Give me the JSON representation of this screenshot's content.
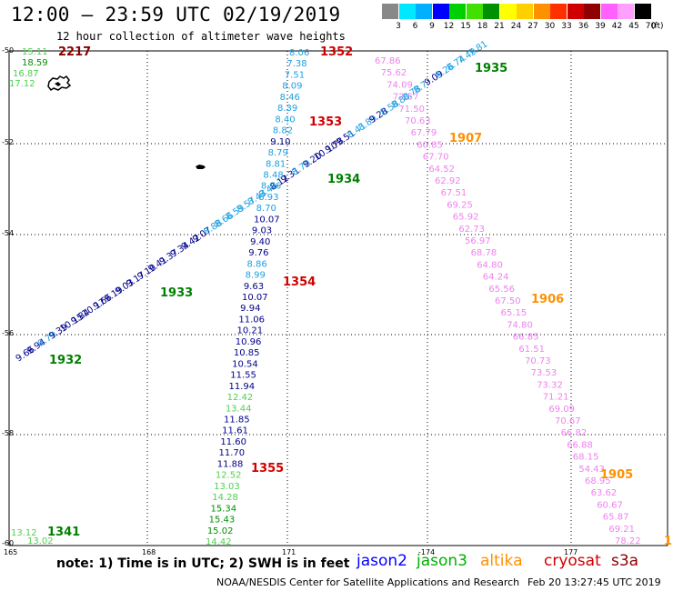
{
  "header": {
    "title": "12:00 – 23:59 UTC 02/19/2019",
    "subtitle": "12 hour collection of altimeter wave heights"
  },
  "legend": {
    "swatches": [
      "#888888",
      "#00e8ff",
      "#00b0ff",
      "#0000ff",
      "#00d000",
      "#40e000",
      "#009000",
      "#ffff00",
      "#ffd000",
      "#ff9000",
      "#ff3000",
      "#d00000",
      "#900000",
      "#ff60ff",
      "#ffa0ff",
      "#000000"
    ],
    "ticks": [
      "3",
      "6",
      "9",
      "12",
      "15",
      "18",
      "21",
      "24",
      "27",
      "30",
      "33",
      "36",
      "39",
      "42",
      "45",
      "70"
    ],
    "unit": "(ft)"
  },
  "axes": {
    "lat_labels": [
      "-50",
      "-52",
      "-54",
      "-56",
      "-58",
      "-60"
    ],
    "lon_labels": [
      "165",
      "168",
      "171",
      "-174",
      "177"
    ]
  },
  "land": [
    {
      "name": "campbell-island-icon"
    },
    {
      "name": "small-island-icon"
    }
  ],
  "passes": [
    {
      "id": "jason2-a",
      "color_main": "#00008b",
      "values": [
        "9.66",
        "9.94",
        "8.79",
        "9.39",
        "10.15",
        "9.84",
        "10.17",
        "9.66",
        "9.19",
        "9.03",
        "9.17",
        "9.10",
        "9.41",
        "9.37",
        "9.34",
        "9.42",
        "9.07",
        "8.88",
        "8.66",
        "8.59",
        "8.57",
        "8.43",
        "8.48",
        "8.12",
        "9.31",
        "8.70",
        "9.20",
        "10.10",
        "9.78",
        "9.51",
        "8.41",
        "8.89",
        "9.28",
        "8.58",
        "8.80",
        "8.78",
        "8.7",
        "9.09",
        "8.26",
        "8.74",
        "7.49",
        "7.81"
      ],
      "colors": [
        "#00008b",
        "#00008b",
        "#1ea0e0",
        "#00008b",
        "#00008b",
        "#00008b",
        "#00008b",
        "#00008b",
        "#00008b",
        "#00008b",
        "#00008b",
        "#00008b",
        "#00008b",
        "#00008b",
        "#00008b",
        "#00008b",
        "#00008b",
        "#1ea0e0",
        "#1ea0e0",
        "#1ea0e0",
        "#1ea0e0",
        "#1ea0e0",
        "#1ea0e0",
        "#00008b",
        "#00008b",
        "#1ea0e0",
        "#00008b",
        "#00008b",
        "#00008b",
        "#00008b",
        "#1ea0e0",
        "#1ea0e0",
        "#00008b",
        "#1ea0e0",
        "#1ea0e0",
        "#1ea0e0",
        "#1ea0e0",
        "#00008b",
        "#1ea0e0",
        "#1ea0e0",
        "#1ea0e0",
        "#1ea0e0"
      ]
    },
    {
      "id": "jason2-b",
      "values": [
        "8.06",
        "7.38",
        "7.51",
        "8.09",
        "8.46",
        "8.39",
        "8.40",
        "8.82",
        "9.10",
        "8.79",
        "8.81",
        "8.48",
        "8.96",
        "8.93",
        "8.70",
        "10.07",
        "9.03",
        "9.40",
        "9.76",
        "8.86",
        "8.99",
        "9.63",
        "10.07",
        "9.94",
        "11.06",
        "10.21",
        "10.96",
        "10.85",
        "10.54",
        "11.55",
        "11.94",
        "12.42",
        "13.44",
        "11.85",
        "11.61",
        "11.60",
        "11.70",
        "11.88",
        "12.52",
        "13.03",
        "14.28",
        "15.34",
        "15.43",
        "15.02",
        "14.42"
      ],
      "colors": [
        "#1ea0e0",
        "#1ea0e0",
        "#1ea0e0",
        "#1ea0e0",
        "#1ea0e0",
        "#1ea0e0",
        "#1ea0e0",
        "#1ea0e0",
        "#00008b",
        "#1ea0e0",
        "#1ea0e0",
        "#1ea0e0",
        "#1ea0e0",
        "#1ea0e0",
        "#1ea0e0",
        "#00008b",
        "#00008b",
        "#00008b",
        "#00008b",
        "#1ea0e0",
        "#1ea0e0",
        "#00008b",
        "#00008b",
        "#00008b",
        "#00008b",
        "#00008b",
        "#00008b",
        "#00008b",
        "#00008b",
        "#00008b",
        "#00008b",
        "#50d050",
        "#50d050",
        "#00008b",
        "#00008b",
        "#00008b",
        "#00008b",
        "#00008b",
        "#50d050",
        "#50d050",
        "#50d050",
        "#009000",
        "#009000",
        "#009000",
        "#50d050"
      ]
    },
    {
      "id": "cryosat",
      "values": [
        "67.86",
        "75.62",
        "74.09",
        "72.57",
        "71.50",
        "70.63",
        "67.79",
        "60.85",
        "67.70",
        "64.52",
        "62.92",
        "67.51",
        "69.25",
        "65.92",
        "62.73",
        "56.97",
        "68.78",
        "64.80",
        "64.24",
        "65.56",
        "67.50",
        "65.15",
        "74.80",
        "66.85",
        "61.51",
        "70.73",
        "73.53",
        "73.32",
        "71.21",
        "69.09",
        "70.67",
        "66.82",
        "66.88",
        "68.15",
        "54.43",
        "68.95",
        "63.62",
        "60.67",
        "65.87",
        "69.21",
        "78.22"
      ]
    }
  ],
  "pass_labels": [
    {
      "text": "2217",
      "color": "#8b0000"
    },
    {
      "text": "1352",
      "color": "#d00000"
    },
    {
      "text": "1935",
      "color": "#008000"
    },
    {
      "text": "1353",
      "color": "#d00000"
    },
    {
      "text": "1907",
      "color": "#ff9000"
    },
    {
      "text": "1934",
      "color": "#008000"
    },
    {
      "text": "1933",
      "color": "#008000"
    },
    {
      "text": "1354",
      "color": "#d00000"
    },
    {
      "text": "1906",
      "color": "#ff9000"
    },
    {
      "text": "1932",
      "color": "#008000"
    },
    {
      "text": "1355",
      "color": "#d00000"
    },
    {
      "text": "1905",
      "color": "#ff9000"
    },
    {
      "text": "1341",
      "color": "#008000"
    },
    {
      "text": "1",
      "color": "#ff9000"
    }
  ],
  "corner_values_top": [
    "15.11",
    "18.59",
    "16.87",
    "17.12"
  ],
  "corner_values_bottom": [
    "13.12",
    "13.02"
  ],
  "footer": {
    "note": "note:  1) Time is in UTC;  2) SWH is in feet",
    "satellites": [
      {
        "name": "jason2",
        "color": "#0000ff"
      },
      {
        "name": "jason3",
        "color": "#00b000"
      },
      {
        "name": "altika",
        "color": "#ff9000"
      },
      {
        "name": "cryosat",
        "color": "#d00000"
      },
      {
        "name": "s3a",
        "color": "#8b0000"
      }
    ],
    "credit": "NOAA/NESDIS Center for Satellite Applications and Research",
    "timestamp": "Feb 20 13:27:45 UTC 2019"
  }
}
